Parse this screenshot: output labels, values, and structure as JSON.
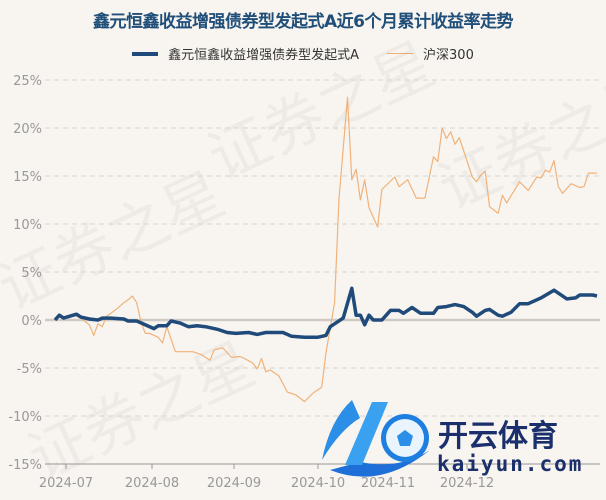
{
  "chart_data": {
    "type": "line",
    "title": "鑫元恒鑫收益增强债券型发起式A近6个月累计收益率走势",
    "xlabel": "",
    "ylabel": "",
    "ylim": [
      -15,
      25
    ],
    "yticks": [
      "25%",
      "20%",
      "15%",
      "10%",
      "5%",
      "0%",
      "-5%",
      "-10%",
      "-15%"
    ],
    "ytick_values": [
      25,
      20,
      15,
      10,
      5,
      0,
      -5,
      -10,
      -15
    ],
    "xticks": [
      "2024-07",
      "2024-08",
      "2024-09",
      "2024-10",
      "2024-11",
      "2024-12"
    ],
    "grid": true,
    "legend": "top",
    "x_axis": "trading days",
    "series": [
      {
        "name": "鑫元恒鑫收益增强债券型发起式A",
        "color": "#1f4a7a",
        "points": [
          [
            "2024-06-25",
            0.0
          ],
          [
            "2024-06-26",
            0.5
          ],
          [
            "2024-06-27",
            0.2
          ],
          [
            "2024-07-02",
            0.6
          ],
          [
            "2024-07-03",
            0.3
          ],
          [
            "2024-07-05",
            0.1
          ],
          [
            "2024-07-09",
            0.0
          ],
          [
            "2024-07-10",
            0.2
          ],
          [
            "2024-07-12",
            0.2
          ],
          [
            "2024-07-17",
            0.1
          ],
          [
            "2024-07-18",
            -0.1
          ],
          [
            "2024-07-22",
            -0.1
          ],
          [
            "2024-07-23",
            -0.3
          ],
          [
            "2024-07-26",
            -0.9
          ],
          [
            "2024-07-29",
            -0.6
          ],
          [
            "2024-07-31",
            -0.6
          ],
          [
            "2024-08-01",
            -0.1
          ],
          [
            "2024-08-05",
            -0.3
          ],
          [
            "2024-08-07",
            -0.7
          ],
          [
            "2024-08-09",
            -0.6
          ],
          [
            "2024-08-13",
            -0.7
          ],
          [
            "2024-08-16",
            -1.0
          ],
          [
            "2024-08-20",
            -1.3
          ],
          [
            "2024-08-22",
            -1.4
          ],
          [
            "2024-08-27",
            -1.3
          ],
          [
            "2024-08-29",
            -1.5
          ],
          [
            "2024-09-02",
            -1.3
          ],
          [
            "2024-09-06",
            -1.3
          ],
          [
            "2024-09-10",
            -1.7
          ],
          [
            "2024-09-13",
            -1.8
          ],
          [
            "2024-09-20",
            -1.8
          ],
          [
            "2024-09-24",
            -1.6
          ],
          [
            "2024-09-25",
            -0.7
          ],
          [
            "2024-09-30",
            0.2
          ],
          [
            "2024-10-09",
            3.3
          ],
          [
            "2024-10-10",
            0.5
          ],
          [
            "2024-10-11",
            0.5
          ],
          [
            "2024-10-14",
            -0.5
          ],
          [
            "2024-10-15",
            0.5
          ],
          [
            "2024-10-16",
            0.0
          ],
          [
            "2024-10-18",
            0.0
          ],
          [
            "2024-10-22",
            1.0
          ],
          [
            "2024-10-24",
            1.0
          ],
          [
            "2024-10-25",
            0.7
          ],
          [
            "2024-10-29",
            1.3
          ],
          [
            "2024-10-31",
            0.7
          ],
          [
            "2024-11-05",
            0.7
          ],
          [
            "2024-11-06",
            1.3
          ],
          [
            "2024-11-08",
            1.4
          ],
          [
            "2024-11-12",
            1.6
          ],
          [
            "2024-11-14",
            1.4
          ],
          [
            "2024-11-18",
            0.8
          ],
          [
            "2024-11-19",
            0.4
          ],
          [
            "2024-11-21",
            1.0
          ],
          [
            "2024-11-22",
            1.1
          ],
          [
            "2024-11-26",
            0.5
          ],
          [
            "2024-11-27",
            0.4
          ],
          [
            "2024-11-29",
            0.8
          ],
          [
            "2024-12-03",
            1.7
          ],
          [
            "2024-12-05",
            1.7
          ],
          [
            "2024-12-10",
            2.3
          ],
          [
            "2024-12-13",
            3.1
          ],
          [
            "2024-12-18",
            2.2
          ],
          [
            "2024-12-20",
            2.3
          ],
          [
            "2024-12-23",
            2.6
          ],
          [
            "2024-12-26",
            2.6
          ],
          [
            "2024-12-27",
            2.5
          ]
        ]
      },
      {
        "name": "沪深300",
        "color": "#f0b27a",
        "points": [
          [
            "2024-06-25",
            0.0
          ],
          [
            "2024-06-26",
            0.4
          ],
          [
            "2024-06-27",
            0.1
          ],
          [
            "2024-06-28",
            0.4
          ],
          [
            "2024-07-01",
            0.6
          ],
          [
            "2024-07-03",
            0.2
          ],
          [
            "2024-07-05",
            -0.5
          ],
          [
            "2024-07-08",
            -1.6
          ],
          [
            "2024-07-09",
            -0.4
          ],
          [
            "2024-07-10",
            -0.7
          ],
          [
            "2024-07-11",
            0.4
          ],
          [
            "2024-07-12",
            0.7
          ],
          [
            "2024-07-16",
            1.4
          ],
          [
            "2024-07-17",
            1.8
          ],
          [
            "2024-07-18",
            2.1
          ],
          [
            "2024-07-19",
            2.5
          ],
          [
            "2024-07-22",
            1.8
          ],
          [
            "2024-07-23",
            -0.2
          ],
          [
            "2024-07-24",
            -1.4
          ],
          [
            "2024-07-25",
            -1.4
          ],
          [
            "2024-07-29",
            -1.8
          ],
          [
            "2024-07-30",
            -2.4
          ],
          [
            "2024-07-31",
            -0.7
          ],
          [
            "2024-08-02",
            -3.3
          ],
          [
            "2024-08-08",
            -3.3
          ],
          [
            "2024-08-12",
            -3.6
          ],
          [
            "2024-08-14",
            -4.2
          ],
          [
            "2024-08-15",
            -3.1
          ],
          [
            "2024-08-19",
            -2.9
          ],
          [
            "2024-08-20",
            -3.4
          ],
          [
            "2024-08-21",
            -3.9
          ],
          [
            "2024-08-23",
            -3.8
          ],
          [
            "2024-08-26",
            -4.0
          ],
          [
            "2024-08-28",
            -4.5
          ],
          [
            "2024-08-29",
            -5.1
          ],
          [
            "2024-08-30",
            -4.0
          ],
          [
            "2024-09-02",
            -5.4
          ],
          [
            "2024-09-03",
            -5.2
          ],
          [
            "2024-09-05",
            -5.8
          ],
          [
            "2024-09-09",
            -7.5
          ],
          [
            "2024-09-11",
            -7.8
          ],
          [
            "2024-09-13",
            -8.5
          ],
          [
            "2024-09-19",
            -7.6
          ],
          [
            "2024-09-23",
            -7.0
          ],
          [
            "2024-09-24",
            -3.4
          ],
          [
            "2024-09-26",
            1.8
          ],
          [
            "2024-09-27",
            12.5
          ],
          [
            "2024-10-08",
            23.2
          ],
          [
            "2024-10-09",
            14.6
          ],
          [
            "2024-10-10",
            15.7
          ],
          [
            "2024-10-11",
            12.5
          ],
          [
            "2024-10-14",
            14.6
          ],
          [
            "2024-10-15",
            11.7
          ],
          [
            "2024-10-17",
            9.7
          ],
          [
            "2024-10-18",
            13.6
          ],
          [
            "2024-10-23",
            14.9
          ],
          [
            "2024-10-24",
            13.9
          ],
          [
            "2024-10-28",
            14.6
          ],
          [
            "2024-10-30",
            12.7
          ],
          [
            "2024-11-01",
            12.7
          ],
          [
            "2024-11-05",
            17.0
          ],
          [
            "2024-11-06",
            16.5
          ],
          [
            "2024-11-07",
            20.0
          ],
          [
            "2024-11-08",
            18.9
          ],
          [
            "2024-11-11",
            19.6
          ],
          [
            "2024-11-12",
            18.3
          ],
          [
            "2024-11-13",
            19.0
          ],
          [
            "2024-11-18",
            14.9
          ],
          [
            "2024-11-19",
            14.4
          ],
          [
            "2024-11-20",
            15.1
          ],
          [
            "2024-11-21",
            15.5
          ],
          [
            "2024-11-22",
            11.8
          ],
          [
            "2024-11-26",
            11.1
          ],
          [
            "2024-11-27",
            13.0
          ],
          [
            "2024-11-28",
            12.2
          ],
          [
            "2024-12-03",
            14.4
          ],
          [
            "2024-12-05",
            13.5
          ],
          [
            "2024-12-09",
            14.9
          ],
          [
            "2024-12-10",
            14.8
          ],
          [
            "2024-12-11",
            15.6
          ],
          [
            "2024-12-12",
            15.4
          ],
          [
            "2024-12-13",
            16.6
          ],
          [
            "2024-12-16",
            13.9
          ],
          [
            "2024-12-17",
            13.2
          ],
          [
            "2024-12-19",
            14.2
          ],
          [
            "2024-12-23",
            13.8
          ],
          [
            "2024-12-24",
            13.9
          ],
          [
            "2024-12-25",
            15.3
          ],
          [
            "2024-12-27",
            15.3
          ]
        ]
      }
    ]
  },
  "watermark": "证券之星",
  "logo": {
    "name": "开云体育",
    "url_text": "kaiyun.com"
  }
}
